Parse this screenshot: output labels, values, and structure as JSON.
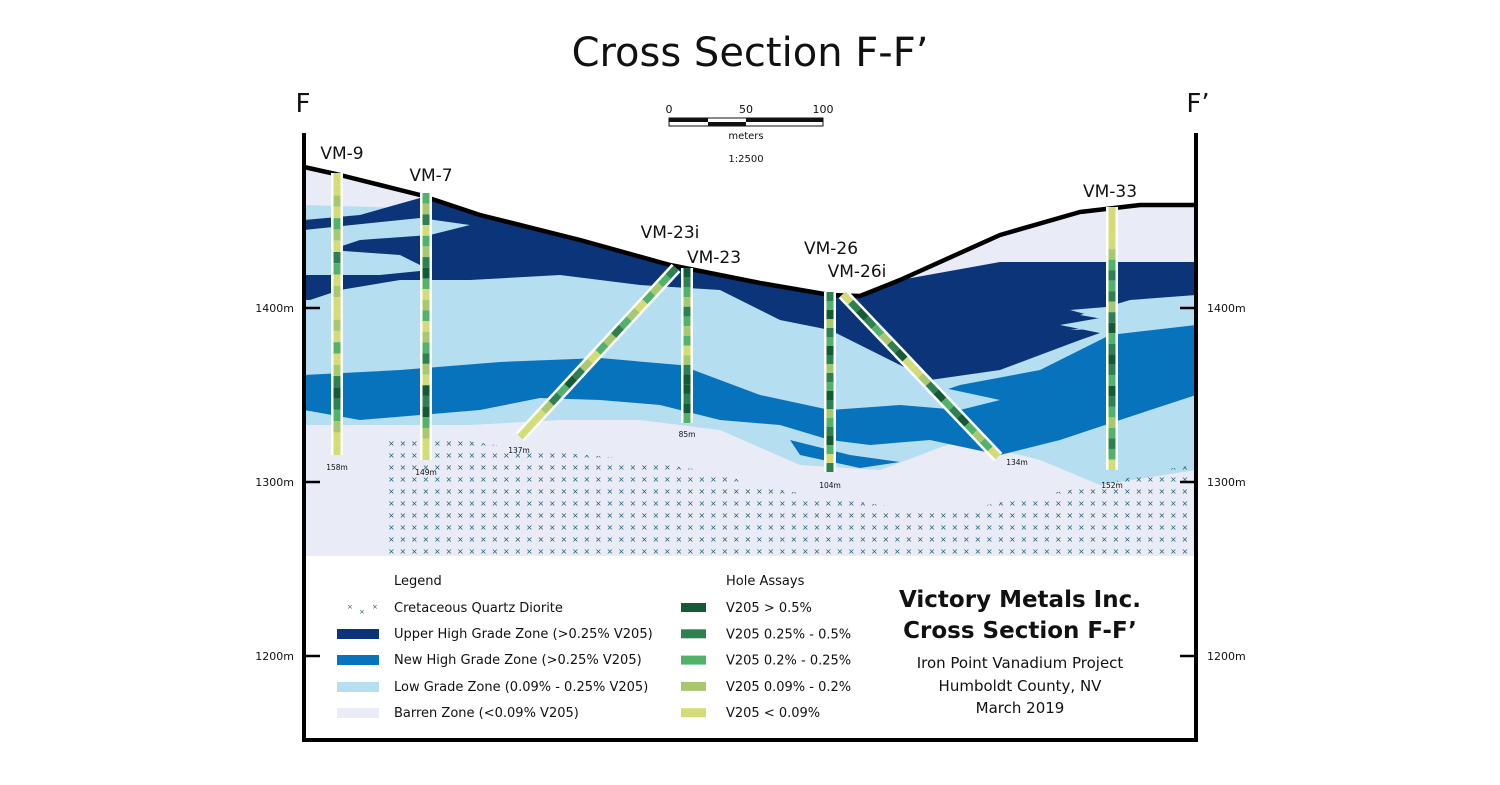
{
  "title": "Cross Section F-F’",
  "section_ends": {
    "left": "F",
    "right": "F’"
  },
  "scale_bar": {
    "ticks": [
      "0",
      "50",
      "100"
    ],
    "unit": "meters",
    "ratio": "1:2500"
  },
  "elevations": [
    "1400m",
    "1300m",
    "1200m"
  ],
  "colors": {
    "upper_high_grade": "#0b3479",
    "new_high_grade": "#0873bd",
    "low_grade": "#b5def0",
    "barren": "#e9ebf6",
    "diorite_mark": "#1d5a6b",
    "assay": [
      "#145a32",
      "#2f8050",
      "#52b26a",
      "#a7c86f",
      "#d3dc77"
    ]
  },
  "holes": [
    {
      "name": "VM-9",
      "depth": "158m",
      "assays": [
        4,
        4,
        3,
        4,
        2,
        3,
        4,
        1,
        2,
        4,
        3,
        4,
        4,
        3,
        4,
        2,
        4,
        3,
        1,
        0,
        1,
        2,
        3,
        4,
        4
      ]
    },
    {
      "name": "VM-7",
      "depth": "149m",
      "assays": [
        2,
        3,
        1,
        4,
        2,
        3,
        1,
        0,
        2,
        4,
        3,
        2,
        4,
        3,
        2,
        1,
        3,
        4,
        0,
        1,
        0,
        2,
        3,
        4,
        4
      ]
    },
    {
      "name": "VM-23i",
      "depth": "137m",
      "assays": [
        1,
        2,
        3,
        2,
        4,
        3,
        2,
        1,
        3,
        2,
        4,
        3,
        1,
        0,
        2,
        1,
        3,
        4,
        4,
        4
      ]
    },
    {
      "name": "VM-23",
      "depth": "85m",
      "assays": [
        0,
        1,
        2,
        3,
        1,
        2,
        3,
        2,
        4,
        3,
        1,
        0,
        0,
        1,
        0,
        2
      ]
    },
    {
      "name": "VM-26",
      "depth": "104m",
      "assays": [
        1,
        2,
        0,
        3,
        1,
        2,
        0,
        1,
        3,
        1,
        2,
        0,
        1,
        3,
        2,
        1,
        0,
        2,
        4,
        1
      ]
    },
    {
      "name": "VM-26i",
      "depth": "134m",
      "assays": [
        4,
        1,
        0,
        1,
        2,
        3,
        1,
        0,
        4,
        4,
        3,
        1,
        0,
        2,
        1,
        0,
        2,
        3,
        2,
        4
      ]
    },
    {
      "name": "VM-33",
      "depth": "152m",
      "assays": [
        4,
        4,
        4,
        4,
        3,
        2,
        1,
        2,
        1,
        3,
        1,
        0,
        2,
        1,
        0,
        1,
        2,
        0,
        1,
        2,
        3,
        2,
        1,
        2,
        4
      ]
    }
  ],
  "legend": {
    "title": "Legend",
    "items": [
      {
        "label": "Cretaceous Quartz Diorite",
        "swatch": "diorite"
      },
      {
        "label": "Upper High Grade Zone (>0.25% V205)",
        "color": "#0b3479"
      },
      {
        "label": "New High Grade Zone (>0.25% V205)",
        "color": "#0873bd"
      },
      {
        "label": "Low Grade Zone (0.09% - 0.25% V205)",
        "color": "#b5def0"
      },
      {
        "label": "Barren Zone (<0.09% V205)",
        "color": "#e9ebf6"
      }
    ]
  },
  "assay_legend": {
    "title": "Hole Assays",
    "items": [
      {
        "label": "V205 > 0.5%",
        "color": "#145a32"
      },
      {
        "label": "V205 0.25% - 0.5%",
        "color": "#2f8050"
      },
      {
        "label": "V205 0.2% - 0.25%",
        "color": "#52b26a"
      },
      {
        "label": "V205 0.09% - 0.2%",
        "color": "#a7c86f"
      },
      {
        "label": "V205 < 0.09%",
        "color": "#d3dc77"
      }
    ]
  },
  "title_block": {
    "company": "Victory Metals Inc.",
    "section": "Cross Section F-F’",
    "project": "Iron Point Vanadium Project",
    "location": "Humboldt County, NV",
    "date": "March 2019"
  }
}
